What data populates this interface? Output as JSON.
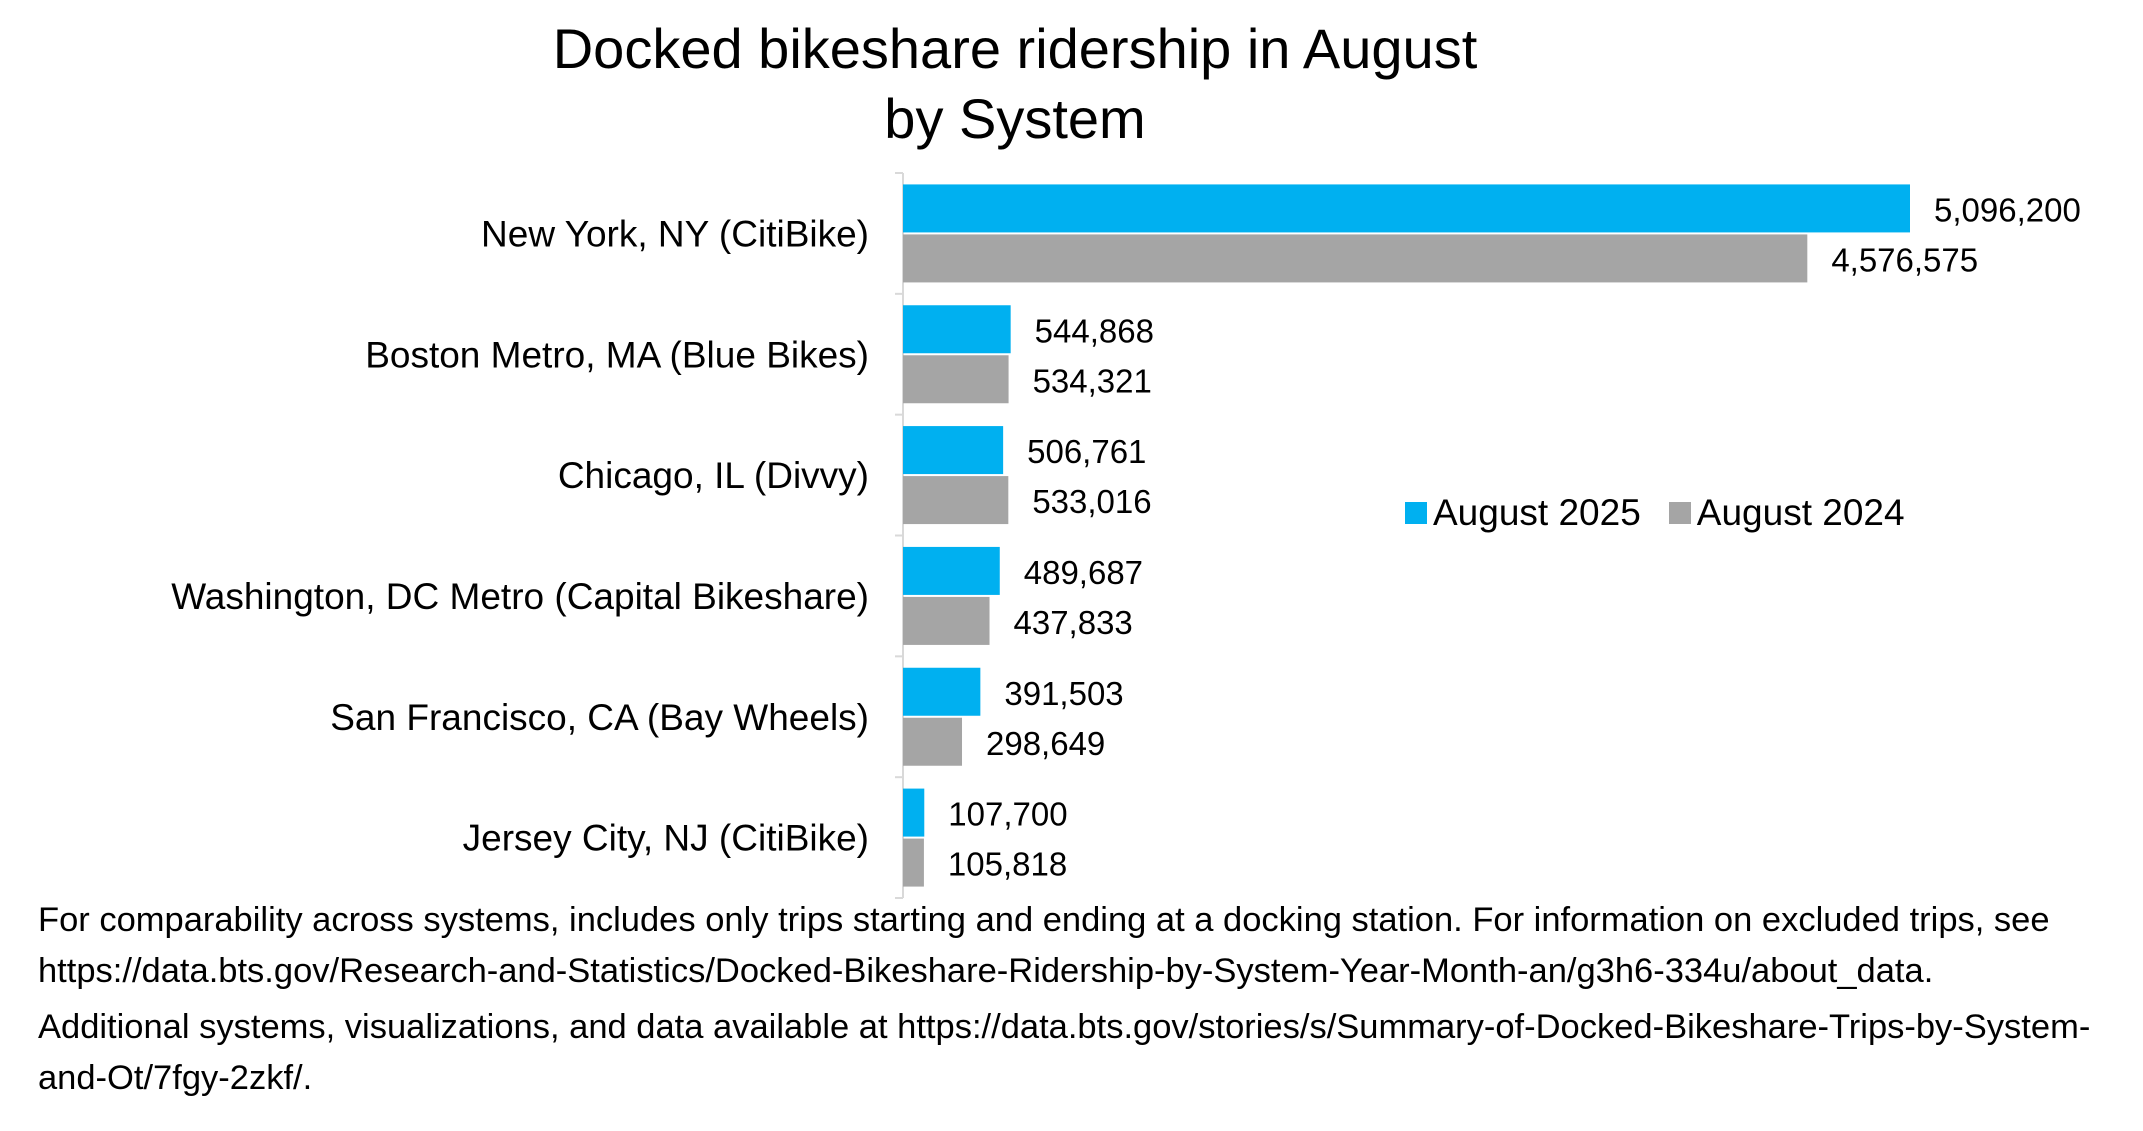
{
  "chart_data": {
    "type": "bar",
    "orientation": "horizontal",
    "title": "Docked bikeshare ridership in August by System",
    "title_lines": [
      "Docked bikeshare ridership in August",
      "by System"
    ],
    "categories": [
      "New York, NY (CitiBike)",
      "Boston Metro, MA (Blue Bikes)",
      "Chicago, IL (Divvy)",
      "Washington, DC Metro (Capital Bikeshare)",
      "San Francisco, CA (Bay Wheels)",
      "Jersey City, NJ (CitiBike)"
    ],
    "series": [
      {
        "name": "August 2025",
        "color": "#00b0f0",
        "values": [
          5096200,
          544868,
          506761,
          489687,
          391503,
          107700
        ],
        "labels": [
          "5,096,200",
          "544,868",
          "506,761",
          "489,687",
          "391,503",
          "107,700"
        ]
      },
      {
        "name": "August 2024",
        "color": "#a5a5a5",
        "values": [
          4576575,
          534321,
          533016,
          437833,
          298649,
          105818
        ],
        "labels": [
          "4,576,575",
          "534,321",
          "533,016",
          "437,833",
          "298,649",
          "105,818"
        ]
      }
    ],
    "xlim": [
      0,
      5096200
    ],
    "grid": false,
    "legend_position": "right"
  },
  "notes": [
    "For comparability across systems, includes only trips starting and ending at a docking station. For information on excluded trips, see https://data.bts.gov/Research-and-Statistics/Docked-Bikeshare-Ridership-by-System-Year-Month-an/g3h6-334u/about_data.",
    "Additional systems, visualizations, and data available at https://data.bts.gov/stories/s/Summary-of-Docked-Bikeshare-Trips-by-System-and-Ot/7fgy-2zkf/."
  ]
}
